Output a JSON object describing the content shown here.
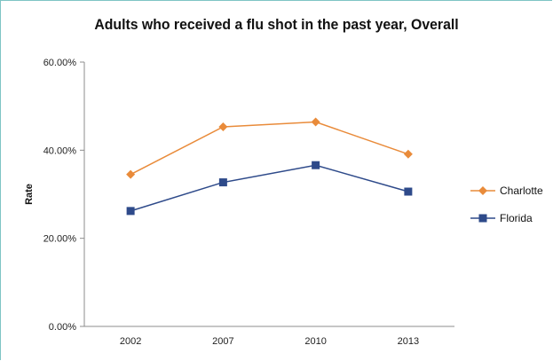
{
  "chart_data": {
    "type": "line",
    "title": "Adults who received a flu shot in the past year, Overall",
    "xlabel": "",
    "ylabel": "Rate",
    "categories": [
      "2002",
      "2007",
      "2010",
      "2013"
    ],
    "ylim": [
      0,
      60
    ],
    "yticks": [
      "0.00%",
      "20.00%",
      "40.00%",
      "60.00%"
    ],
    "grid": false,
    "legend_position": "right",
    "series": [
      {
        "name": "Charlotte",
        "values": [
          34.5,
          45.3,
          46.4,
          39.1
        ],
        "color": "#e98b3a",
        "marker": "diamond"
      },
      {
        "name": "Florida",
        "values": [
          26.2,
          32.7,
          36.6,
          30.6
        ],
        "color": "#2e4a8a",
        "marker": "square"
      }
    ]
  }
}
